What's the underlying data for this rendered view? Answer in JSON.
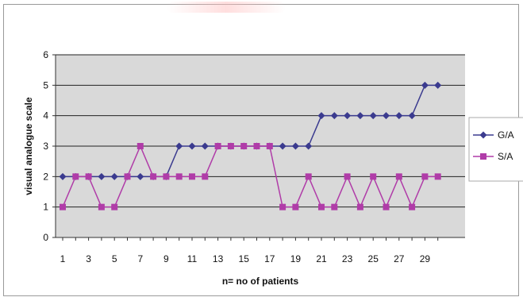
{
  "chart_data": {
    "type": "line",
    "title": "",
    "xlabel": "n= no of patients",
    "ylabel": "visual analogue scale",
    "ylim": [
      0,
      6
    ],
    "yticks": [
      0,
      1,
      2,
      3,
      4,
      5,
      6
    ],
    "x": [
      1,
      2,
      3,
      4,
      5,
      6,
      7,
      8,
      9,
      10,
      11,
      12,
      13,
      14,
      15,
      16,
      17,
      18,
      19,
      20,
      21,
      22,
      23,
      24,
      25,
      26,
      27,
      28,
      29,
      30
    ],
    "xtick_labels": [
      "1",
      "3",
      "5",
      "7",
      "9",
      "11",
      "13",
      "15",
      "17",
      "19",
      "21",
      "23",
      "25",
      "27",
      "29"
    ],
    "grid": "horizontal",
    "legend_position": "right",
    "series": [
      {
        "name": "G/A",
        "color": "#3b3b8f",
        "marker": "diamond",
        "values": [
          2,
          2,
          2,
          2,
          2,
          2,
          2,
          2,
          2,
          3,
          3,
          3,
          3,
          3,
          3,
          3,
          3,
          3,
          3,
          3,
          4,
          4,
          4,
          4,
          4,
          4,
          4,
          4,
          5,
          5
        ]
      },
      {
        "name": "S/A",
        "color": "#b03ca8",
        "marker": "square",
        "values": [
          1,
          2,
          2,
          1,
          1,
          2,
          3,
          2,
          2,
          2,
          2,
          2,
          3,
          3,
          3,
          3,
          3,
          1,
          1,
          2,
          1,
          1,
          2,
          1,
          2,
          1,
          2,
          1,
          2,
          2
        ]
      }
    ]
  }
}
